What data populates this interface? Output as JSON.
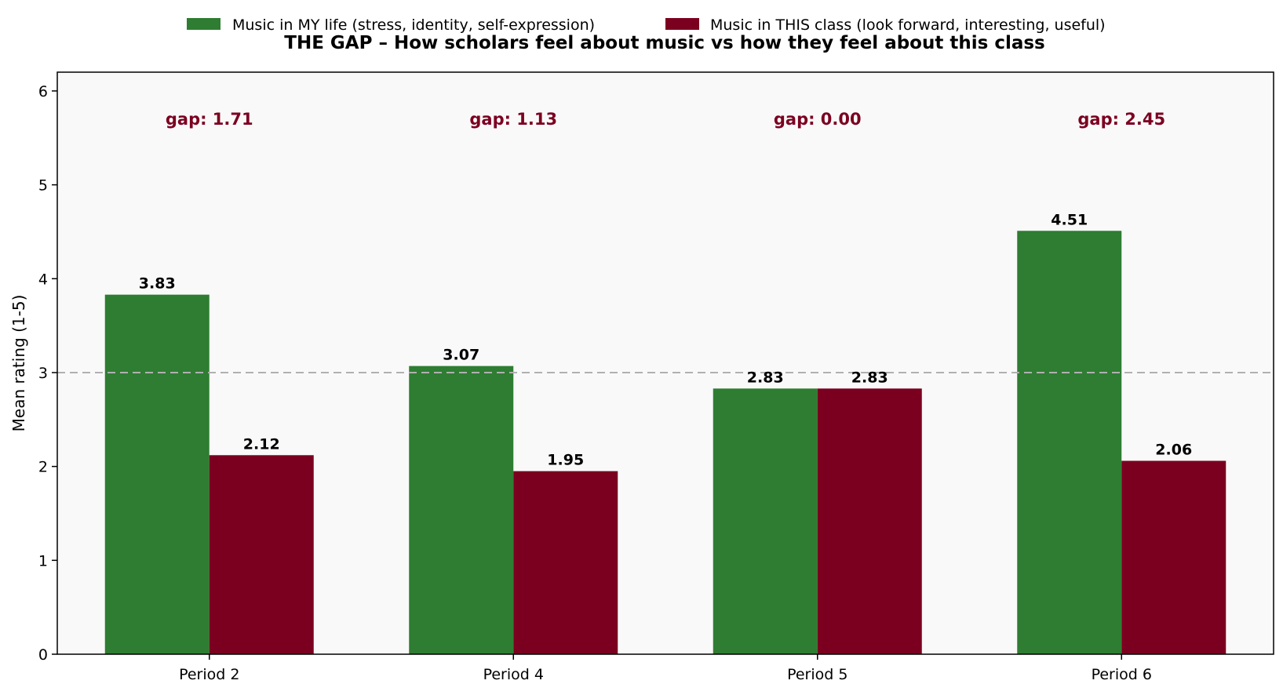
{
  "chart_data": {
    "type": "bar",
    "title": "THE GAP – How scholars feel about music vs how they feel about this class",
    "xlabel": "",
    "ylabel": "Mean rating (1-5)",
    "ylim": [
      0,
      6.2
    ],
    "yticks": [
      0,
      1,
      2,
      3,
      4,
      5,
      6
    ],
    "reference_line": 3,
    "categories": [
      "Period 2",
      "Period 4",
      "Period 5",
      "Period 6"
    ],
    "series": [
      {
        "name": "Music in MY life (stress, identity, self-expression)",
        "color": "#2e7d32",
        "values": [
          3.83,
          3.07,
          2.83,
          4.51
        ],
        "labels": [
          "3.83",
          "3.07",
          "2.83",
          "4.51"
        ]
      },
      {
        "name": "Music in THIS class (look forward, interesting, useful)",
        "color": "#7b0020",
        "values": [
          2.12,
          1.95,
          2.83,
          2.06
        ],
        "labels": [
          "2.12",
          "1.95",
          "2.83",
          "2.06"
        ]
      }
    ],
    "gap_labels": [
      "gap: 1.71",
      "gap: 1.13",
      "gap: 0.00",
      "gap: 2.45"
    ],
    "gap_value_y": 5.7,
    "gap_color": "#7b0020",
    "legend": "top-center",
    "grid": false,
    "plot_background": "#f9f9f9",
    "reference_line_color": "#b0b0b0"
  }
}
